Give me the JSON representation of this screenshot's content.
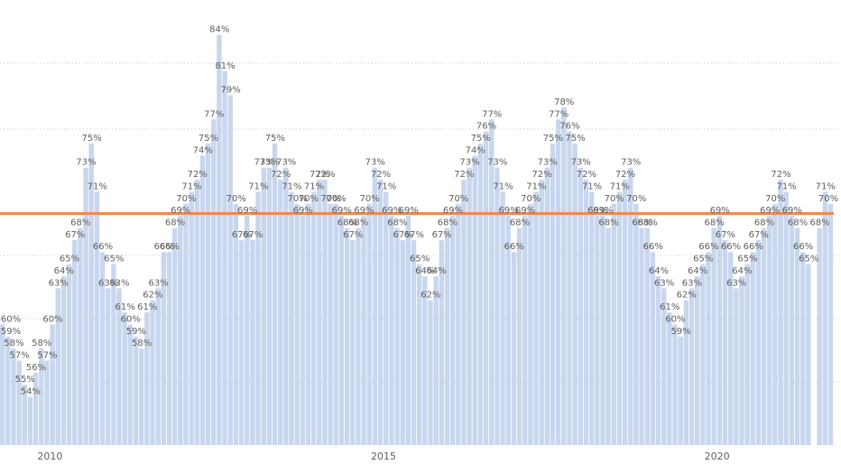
{
  "chart_data": {
    "type": "bar",
    "x_tick_labels": [
      "2010",
      "2015",
      "2020"
    ],
    "grid": true,
    "bar_color": "#c8d6ee",
    "reference_line_color": "#f4874b",
    "reference_line_value": 69.2,
    "ylim": [
      50,
      86
    ],
    "series": [
      {
        "points": [
          {
            "x": "2009-04",
            "y": 60
          },
          {
            "x": "2009-05",
            "y": 59
          },
          {
            "x": "2009-06",
            "y": 58
          },
          {
            "x": "2009-07",
            "y": 57
          },
          {
            "x": "2009-08",
            "y": 55
          },
          {
            "x": "2009-09",
            "y": 54
          },
          {
            "x": "2009-10",
            "y": 56
          },
          {
            "x": "2009-11",
            "y": 58
          },
          {
            "x": "2009-12",
            "y": 57
          },
          {
            "x": "2010-01",
            "y": 60
          },
          {
            "x": "2010-02",
            "y": 63
          },
          {
            "x": "2010-03",
            "y": 64
          },
          {
            "x": "2010-04",
            "y": 65
          },
          {
            "x": "2010-05",
            "y": 67
          },
          {
            "x": "2010-06",
            "y": 68
          },
          {
            "x": "2010-07",
            "y": 73
          },
          {
            "x": "2010-08",
            "y": 75
          },
          {
            "x": "2010-09",
            "y": 71
          },
          {
            "x": "2010-10",
            "y": 66
          },
          {
            "x": "2010-11",
            "y": 63
          },
          {
            "x": "2010-12",
            "y": 65
          },
          {
            "x": "2011-01",
            "y": 63
          },
          {
            "x": "2011-02",
            "y": 61
          },
          {
            "x": "2011-03",
            "y": 60
          },
          {
            "x": "2011-04",
            "y": 59
          },
          {
            "x": "2011-05",
            "y": 58
          },
          {
            "x": "2011-06",
            "y": 61
          },
          {
            "x": "2011-07",
            "y": 62
          },
          {
            "x": "2011-08",
            "y": 63
          },
          {
            "x": "2011-09",
            "y": 66
          },
          {
            "x": "2011-10",
            "y": 66
          },
          {
            "x": "2011-11",
            "y": 68
          },
          {
            "x": "2011-12",
            "y": 69
          },
          {
            "x": "2012-01",
            "y": 70
          },
          {
            "x": "2012-02",
            "y": 71
          },
          {
            "x": "2012-03",
            "y": 72
          },
          {
            "x": "2012-04",
            "y": 74
          },
          {
            "x": "2012-05",
            "y": 75
          },
          {
            "x": "2012-06",
            "y": 77
          },
          {
            "x": "2012-07",
            "y": 84
          },
          {
            "x": "2012-08",
            "y": 81
          },
          {
            "x": "2012-09",
            "y": 79
          },
          {
            "x": "2012-10",
            "y": 70
          },
          {
            "x": "2012-11",
            "y": 67
          },
          {
            "x": "2012-12",
            "y": 69
          },
          {
            "x": "2013-01",
            "y": 67
          },
          {
            "x": "2013-02",
            "y": 71
          },
          {
            "x": "2013-03",
            "y": 73
          },
          {
            "x": "2013-04",
            "y": 73
          },
          {
            "x": "2013-05",
            "y": 75
          },
          {
            "x": "2013-06",
            "y": 72
          },
          {
            "x": "2013-07",
            "y": 73
          },
          {
            "x": "2013-08",
            "y": 71
          },
          {
            "x": "2013-09",
            "y": 70
          },
          {
            "x": "2013-10",
            "y": 69
          },
          {
            "x": "2013-11",
            "y": 70
          },
          {
            "x": "2013-12",
            "y": 71
          },
          {
            "x": "2014-01",
            "y": 72
          },
          {
            "x": "2014-02",
            "y": 72
          },
          {
            "x": "2014-03",
            "y": 70
          },
          {
            "x": "2014-04",
            "y": 70
          },
          {
            "x": "2014-05",
            "y": 69
          },
          {
            "x": "2014-06",
            "y": 68
          },
          {
            "x": "2014-07",
            "y": 67
          },
          {
            "x": "2014-08",
            "y": 68
          },
          {
            "x": "2014-09",
            "y": 69
          },
          {
            "x": "2014-10",
            "y": 70
          },
          {
            "x": "2014-11",
            "y": 73
          },
          {
            "x": "2014-12",
            "y": 72
          },
          {
            "x": "2015-01",
            "y": 71
          },
          {
            "x": "2015-02",
            "y": 69
          },
          {
            "x": "2015-03",
            "y": 68
          },
          {
            "x": "2015-04",
            "y": 67
          },
          {
            "x": "2015-05",
            "y": 69
          },
          {
            "x": "2015-06",
            "y": 67
          },
          {
            "x": "2015-07",
            "y": 65
          },
          {
            "x": "2015-08",
            "y": 64
          },
          {
            "x": "2015-09",
            "y": 62
          },
          {
            "x": "2015-10",
            "y": 64
          },
          {
            "x": "2015-11",
            "y": 67
          },
          {
            "x": "2015-12",
            "y": 68
          },
          {
            "x": "2016-01",
            "y": 69
          },
          {
            "x": "2016-02",
            "y": 70
          },
          {
            "x": "2016-03",
            "y": 72
          },
          {
            "x": "2016-04",
            "y": 73
          },
          {
            "x": "2016-05",
            "y": 74
          },
          {
            "x": "2016-06",
            "y": 75
          },
          {
            "x": "2016-07",
            "y": 76
          },
          {
            "x": "2016-08",
            "y": 77
          },
          {
            "x": "2016-09",
            "y": 73
          },
          {
            "x": "2016-10",
            "y": 71
          },
          {
            "x": "2016-11",
            "y": 69
          },
          {
            "x": "2016-12",
            "y": 66
          },
          {
            "x": "2017-01",
            "y": 68
          },
          {
            "x": "2017-02",
            "y": 69
          },
          {
            "x": "2017-03",
            "y": 70
          },
          {
            "x": "2017-04",
            "y": 71
          },
          {
            "x": "2017-05",
            "y": 72
          },
          {
            "x": "2017-06",
            "y": 73
          },
          {
            "x": "2017-07",
            "y": 75
          },
          {
            "x": "2017-08",
            "y": 77
          },
          {
            "x": "2017-09",
            "y": 78
          },
          {
            "x": "2017-10",
            "y": 76
          },
          {
            "x": "2017-11",
            "y": 75
          },
          {
            "x": "2017-12",
            "y": 73
          },
          {
            "x": "2018-01",
            "y": 72
          },
          {
            "x": "2018-02",
            "y": 71
          },
          {
            "x": "2018-03",
            "y": 69
          },
          {
            "x": "2018-04",
            "y": 69
          },
          {
            "x": "2018-05",
            "y": 68
          },
          {
            "x": "2018-06",
            "y": 70
          },
          {
            "x": "2018-07",
            "y": 71
          },
          {
            "x": "2018-08",
            "y": 72
          },
          {
            "x": "2018-09",
            "y": 73
          },
          {
            "x": "2018-10",
            "y": 70
          },
          {
            "x": "2018-11",
            "y": 68
          },
          {
            "x": "2018-12",
            "y": 68
          },
          {
            "x": "2019-01",
            "y": 66
          },
          {
            "x": "2019-02",
            "y": 64
          },
          {
            "x": "2019-03",
            "y": 63
          },
          {
            "x": "2019-04",
            "y": 61
          },
          {
            "x": "2019-05",
            "y": 60
          },
          {
            "x": "2019-06",
            "y": 59
          },
          {
            "x": "2019-07",
            "y": 62
          },
          {
            "x": "2019-08",
            "y": 63
          },
          {
            "x": "2019-09",
            "y": 64
          },
          {
            "x": "2019-10",
            "y": 65
          },
          {
            "x": "2019-11",
            "y": 66
          },
          {
            "x": "2019-12",
            "y": 68
          },
          {
            "x": "2020-01",
            "y": 69
          },
          {
            "x": "2020-02",
            "y": 67
          },
          {
            "x": "2020-03",
            "y": 66
          },
          {
            "x": "2020-04",
            "y": 63
          },
          {
            "x": "2020-05",
            "y": 64
          },
          {
            "x": "2020-06",
            "y": 65
          },
          {
            "x": "2020-07",
            "y": 66
          },
          {
            "x": "2020-08",
            "y": 67
          },
          {
            "x": "2020-09",
            "y": 68
          },
          {
            "x": "2020-10",
            "y": 69
          },
          {
            "x": "2020-11",
            "y": 70
          },
          {
            "x": "2020-12",
            "y": 72
          },
          {
            "x": "2021-01",
            "y": 71
          },
          {
            "x": "2021-02",
            "y": 69
          },
          {
            "x": "2021-03",
            "y": 68
          },
          {
            "x": "2021-04",
            "y": 66
          },
          {
            "x": "2021-05",
            "y": 65
          },
          {
            "x": "2021-06",
            "y": null
          },
          {
            "x": "2021-07",
            "y": 68
          },
          {
            "x": "2021-08",
            "y": 71
          },
          {
            "x": "2021-09",
            "y": 70
          }
        ]
      }
    ]
  }
}
